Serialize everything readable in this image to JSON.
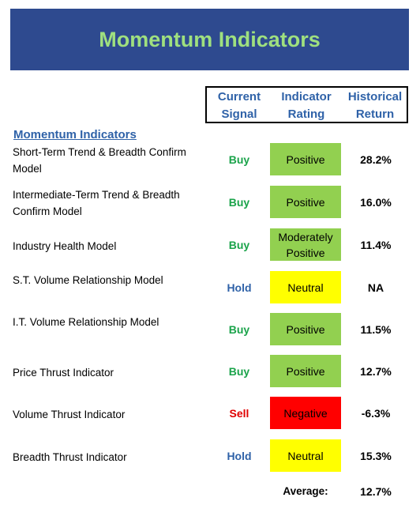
{
  "title": "Momentum Indicators",
  "headers": {
    "signal": [
      "Current",
      "Signal"
    ],
    "rating": [
      "Indicator",
      "Rating"
    ],
    "return": [
      "Historical",
      "Return"
    ]
  },
  "section_label": "Momentum Indicators",
  "colors": {
    "banner": "#2e4a8f",
    "title": "#9fe07f",
    "header_text": "#2f62a8",
    "buy": "#1aa34a",
    "hold": "#2f62a8",
    "sell": "#e00000",
    "positive": "#92d050",
    "neutral": "#ffff00",
    "negative": "#ff0000"
  },
  "rows": [
    {
      "label": "Short-Term Trend & Breadth Confirm Model",
      "signal": "Buy",
      "rating": "Positive",
      "rating_kind": "positive",
      "return": "28.2%"
    },
    {
      "label": "Intermediate-Term Trend & Breadth Confirm Model",
      "signal": "Buy",
      "rating": "Positive",
      "rating_kind": "positive",
      "return": "16.0%"
    },
    {
      "label": "Industry Health Model",
      "signal": "Buy",
      "rating": "Moderately Positive",
      "rating_kind": "positive",
      "return": "11.4%"
    },
    {
      "label": "S.T. Volume Relationship Model",
      "signal": "Hold",
      "rating": "Neutral",
      "rating_kind": "neutral",
      "return": "NA"
    },
    {
      "label": "I.T. Volume Relationship Model",
      "signal": "Buy",
      "rating": "Positive",
      "rating_kind": "positive",
      "return": "11.5%"
    },
    {
      "label": "Price Thrust Indicator",
      "signal": "Buy",
      "rating": "Positive",
      "rating_kind": "positive",
      "return": "12.7%"
    },
    {
      "label": "Volume Thrust Indicator",
      "signal": "Sell",
      "rating": "Negative",
      "rating_kind": "negative",
      "return": "-6.3%"
    },
    {
      "label": "Breadth Thrust Indicator",
      "signal": "Hold",
      "rating": "Neutral",
      "rating_kind": "neutral",
      "return": "15.3%"
    }
  ],
  "average": {
    "label": "Average:",
    "value": "12.7%"
  }
}
